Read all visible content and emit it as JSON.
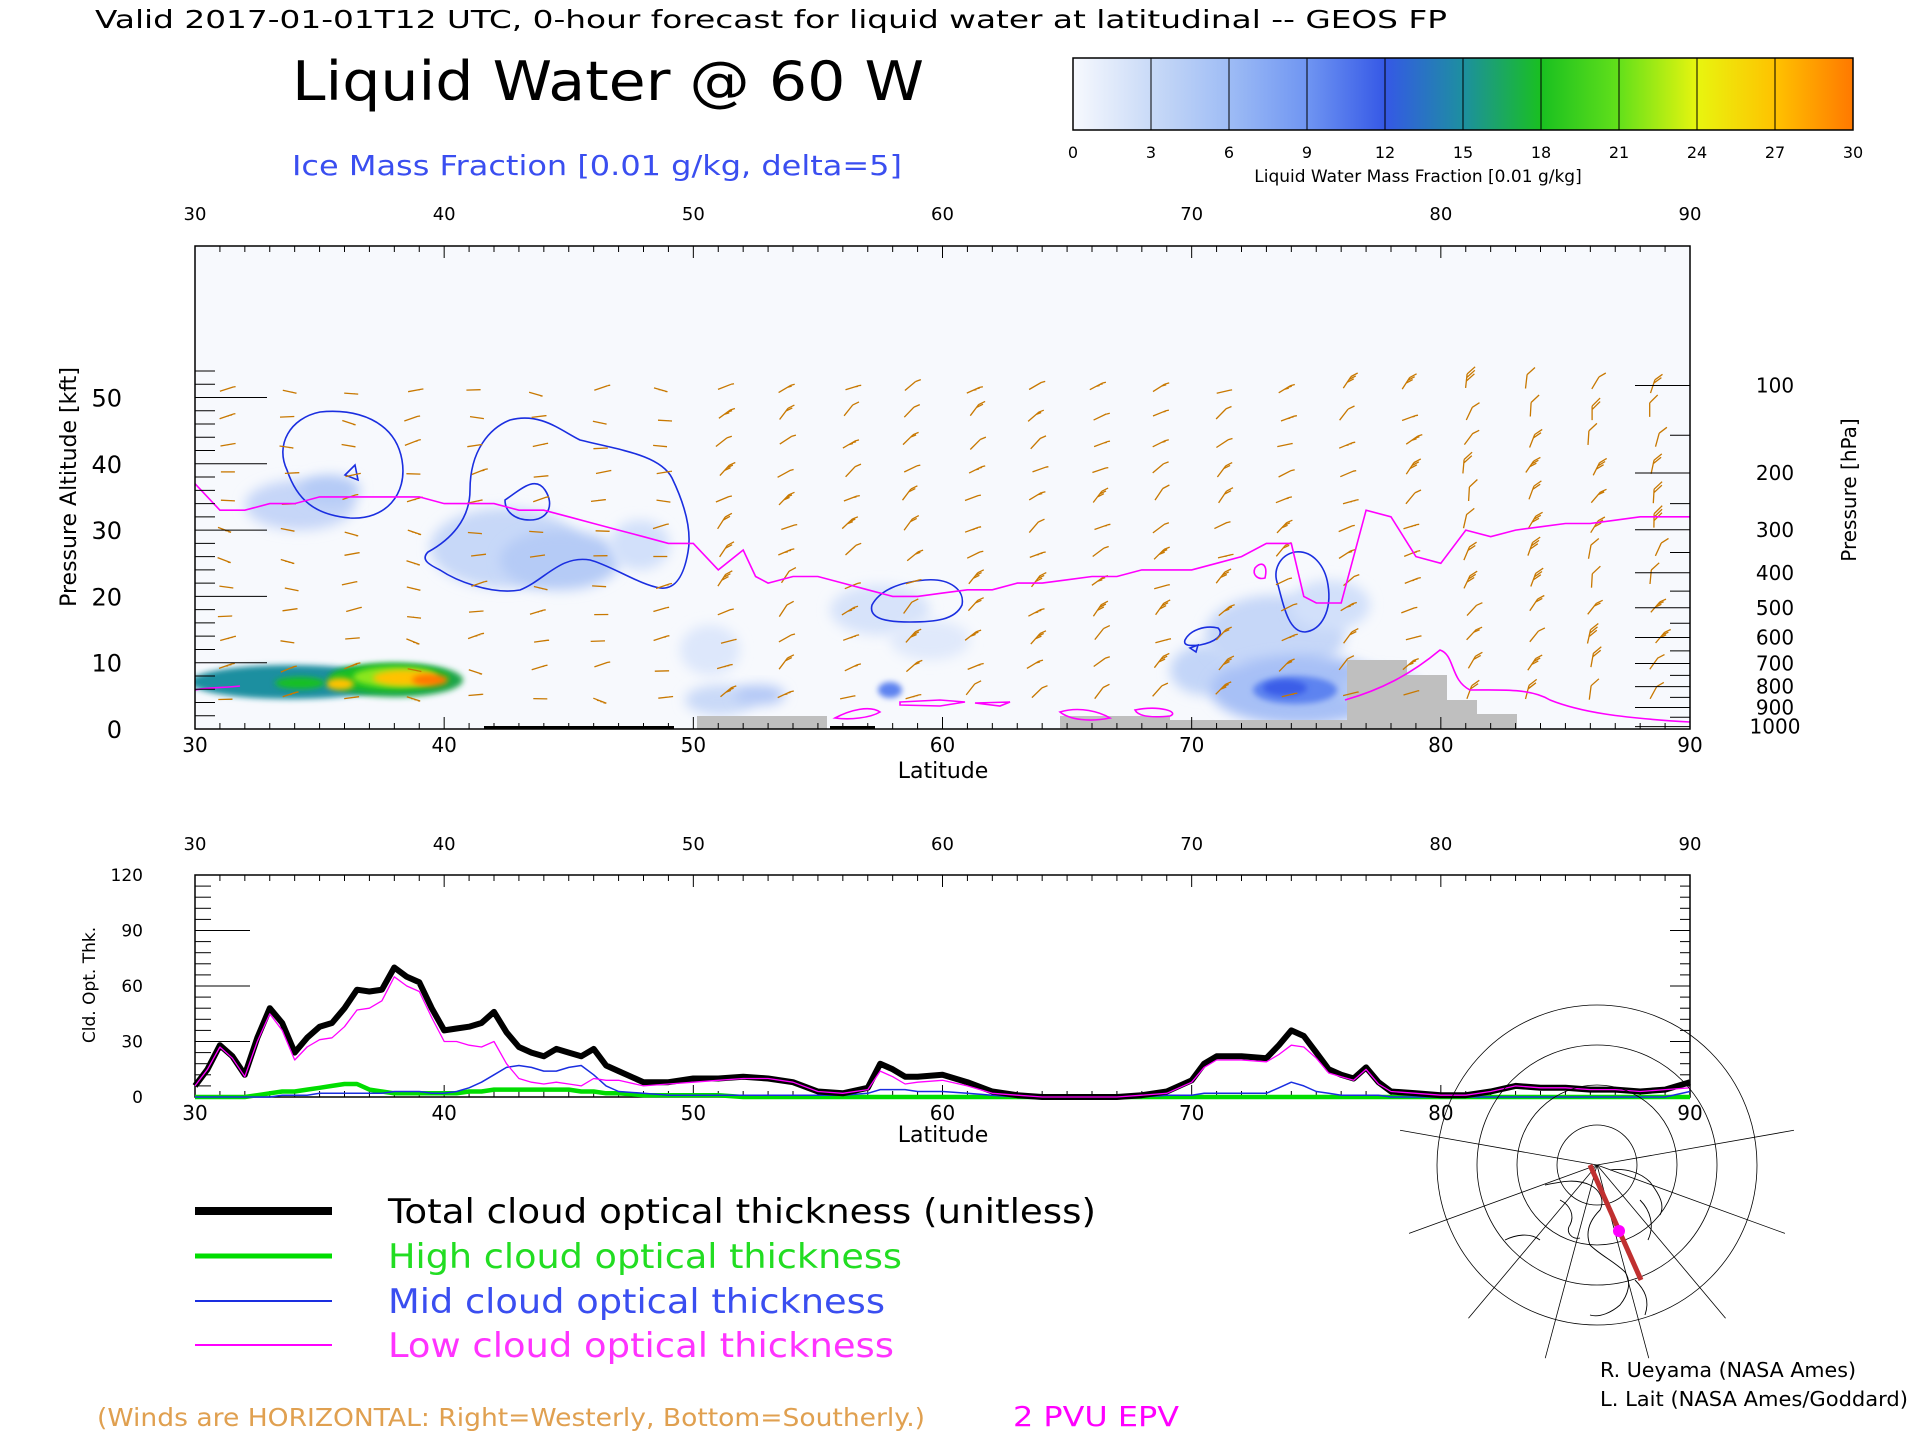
{
  "header": {
    "valid_line": "Valid 2017-01-01T12 UTC, 0-hour forecast for liquid water at latitudinal -- GEOS FP",
    "title": "Liquid Water @ 60 W",
    "subtitle": "Ice Mass Fraction [0.01 g/kg, delta=5]"
  },
  "colorbar": {
    "ticks": [
      "0",
      "3",
      "6",
      "9",
      "12",
      "15",
      "18",
      "21",
      "24",
      "27",
      "30"
    ],
    "label": "Liquid Water Mass Fraction [0.01 g/kg]",
    "colors": [
      "#f7f9fe",
      "#c9daf7",
      "#9ebcf5",
      "#6f95f2",
      "#3558e6",
      "#1d8fa0",
      "#19c020",
      "#63e01a",
      "#e8f50f",
      "#ffc200",
      "#ff7800"
    ]
  },
  "colors": {
    "ice_contour": "#1a2ee0",
    "epv_line": "#ff00ff",
    "wind_barb": "#c87800",
    "terrain": "#bfbfbf",
    "total_line": "#000000",
    "high_line": "#00dd00",
    "mid_line": "#1a2ee0",
    "low_line": "#ff00ff"
  },
  "upper_plot": {
    "lat_ticks": [
      "30",
      "40",
      "50",
      "60",
      "70",
      "80",
      "90"
    ],
    "xlabel": "Latitude",
    "left_ylabel": "Pressure Altitude [kft]",
    "left_ticks": [
      "0",
      "10",
      "20",
      "30",
      "40",
      "50"
    ],
    "right_ylabel": "Pressure [hPa]",
    "right_ticks": [
      "100",
      "200",
      "300",
      "400",
      "500",
      "600",
      "700",
      "800",
      "900",
      "1000"
    ]
  },
  "lower_plot": {
    "lat_ticks": [
      "30",
      "40",
      "50",
      "60",
      "70",
      "80",
      "90"
    ],
    "xlabel": "Latitude",
    "ylabel": "Cld. Opt. Thk.",
    "y_ticks": [
      "0",
      "30",
      "60",
      "90",
      "120"
    ]
  },
  "chart_data": [
    {
      "type": "heatmap",
      "title": "Liquid Water @ 60 W",
      "xlabel": "Latitude",
      "ylabel": "Pressure Altitude [kft]",
      "xlim": [
        30,
        90
      ],
      "ylim": [
        0,
        56
      ],
      "pressure_ticks_hPa": [
        100,
        200,
        300,
        400,
        500,
        600,
        700,
        800,
        900,
        1000
      ],
      "liquid_water_patches": [
        {
          "lat": 37,
          "alt_kft": 5.5,
          "max_value": 28
        },
        {
          "lat": 74,
          "alt_kft": 5,
          "max_value": 10
        },
        {
          "lat": 42,
          "alt_kft": 20,
          "max_value": 3
        },
        {
          "lat": 57.5,
          "alt_kft": 4,
          "max_value": 7
        }
      ],
      "epv_2pvu_kft": {
        "lat": [
          30,
          31,
          32,
          33,
          34,
          35,
          36,
          37,
          38,
          39,
          40,
          41,
          42,
          43,
          44,
          45,
          46,
          47,
          48,
          49,
          50,
          51,
          52,
          52.5,
          53,
          54,
          55,
          56,
          57,
          58,
          59,
          60,
          61,
          62,
          63,
          64,
          65,
          66,
          67,
          68,
          69,
          70,
          71,
          72,
          73,
          74,
          74.5,
          75,
          76,
          77,
          78,
          79,
          80,
          81,
          82,
          83,
          84,
          85,
          86,
          87,
          88,
          89,
          90
        ],
        "alt": [
          37,
          33,
          33,
          34,
          34,
          35,
          35,
          35,
          35,
          35,
          34,
          34,
          34,
          33,
          33,
          32,
          31,
          30,
          29,
          28,
          28,
          24,
          27,
          23,
          22,
          23,
          23,
          22,
          21,
          20,
          20,
          20.5,
          21,
          21,
          22,
          22,
          22.5,
          23,
          23,
          24,
          24,
          24,
          25,
          26,
          28,
          28,
          20,
          19,
          19,
          33,
          32,
          26,
          25,
          30,
          29,
          30,
          30.5,
          31,
          31,
          31.5,
          32,
          32,
          32
        ]
      },
      "ice_contours_delta": 5,
      "winds": "horizontal barbs: right=westerly, bottom=southerly"
    },
    {
      "type": "line",
      "xlabel": "Latitude",
      "ylabel": "Cld. Opt. Thk.",
      "xlim": [
        30,
        90
      ],
      "ylim": [
        0,
        120
      ],
      "x": [
        30,
        30.5,
        31,
        31.5,
        32,
        32.5,
        33,
        33.5,
        34,
        34.5,
        35,
        35.5,
        36,
        36.5,
        37,
        37.5,
        38,
        38.5,
        39,
        39.5,
        40,
        40.5,
        41,
        41.5,
        42,
        42.5,
        43,
        43.5,
        44,
        44.5,
        45,
        45.5,
        46,
        46.5,
        47,
        48,
        49,
        50,
        51,
        52,
        53,
        54,
        55,
        56,
        57,
        57.5,
        58,
        58.5,
        59,
        60,
        61,
        62,
        63,
        64,
        65,
        66,
        67,
        68,
        69,
        70,
        70.5,
        71,
        72,
        73,
        73.5,
        74,
        74.5,
        75,
        75.5,
        76,
        76.5,
        77,
        77.5,
        78,
        79,
        80,
        81,
        82,
        83,
        84,
        85,
        86,
        87,
        88,
        89,
        90
      ],
      "series": [
        {
          "name": "Total cloud optical thickness (unitless)",
          "values": [
            6,
            15,
            28,
            22,
            12,
            32,
            48,
            40,
            24,
            32,
            38,
            40,
            48,
            58,
            57,
            58,
            70,
            65,
            62,
            48,
            36,
            37,
            38,
            40,
            46,
            35,
            27,
            24,
            22,
            26,
            24,
            22,
            26,
            17,
            14,
            8,
            8,
            10,
            10,
            11,
            10,
            8,
            3,
            2,
            5,
            18,
            15,
            11,
            11,
            12,
            8,
            3,
            1,
            0,
            0,
            0,
            0,
            1,
            3,
            9,
            18,
            22,
            22,
            21,
            28,
            36,
            33,
            24,
            15,
            12,
            10,
            16,
            8,
            3,
            2,
            1,
            1,
            3,
            6,
            5,
            5,
            4,
            4,
            3,
            4,
            8
          ]
        },
        {
          "name": "High cloud optical thickness",
          "values": [
            0,
            0,
            0,
            0,
            0,
            1,
            2,
            3,
            3,
            4,
            5,
            6,
            7,
            7,
            4,
            3,
            2,
            2,
            2,
            2,
            2,
            2,
            3,
            3,
            4,
            4,
            4,
            4,
            4,
            4,
            4,
            3,
            3,
            2,
            2,
            1,
            1,
            1,
            1,
            0,
            0,
            0,
            0,
            0,
            0,
            0,
            0,
            0,
            0,
            0,
            0,
            0,
            0,
            0,
            0,
            0,
            0,
            0,
            0,
            0,
            0,
            0,
            0,
            0,
            0,
            0,
            0,
            0,
            0,
            0,
            0,
            0,
            0,
            0,
            0,
            0,
            0,
            0,
            0,
            0,
            0,
            0,
            0,
            0,
            0,
            0
          ]
        },
        {
          "name": "Mid cloud optical thickness",
          "values": [
            0,
            0,
            0,
            0,
            0,
            0,
            0,
            1,
            1,
            1,
            2,
            2,
            2,
            2,
            2,
            2,
            3,
            3,
            3,
            2,
            2,
            3,
            5,
            8,
            12,
            16,
            17,
            16,
            14,
            14,
            16,
            17,
            12,
            6,
            3,
            2,
            1,
            1,
            1,
            1,
            1,
            1,
            1,
            1,
            2,
            4,
            4,
            4,
            3,
            3,
            2,
            1,
            0,
            0,
            0,
            0,
            0,
            0,
            1,
            1,
            2,
            2,
            2,
            2,
            5,
            8,
            6,
            3,
            2,
            1,
            1,
            1,
            1,
            0,
            0,
            0,
            0,
            0,
            0,
            0,
            0,
            0,
            0,
            0,
            0,
            3
          ]
        },
        {
          "name": "Low cloud optical thickness",
          "values": [
            6,
            15,
            27,
            21,
            11,
            30,
            45,
            36,
            20,
            27,
            31,
            32,
            38,
            47,
            48,
            52,
            65,
            60,
            57,
            43,
            30,
            30,
            28,
            27,
            30,
            18,
            10,
            8,
            7,
            8,
            7,
            6,
            10,
            9,
            9,
            6,
            7,
            8,
            9,
            10,
            10,
            8,
            3,
            2,
            4,
            14,
            11,
            7,
            8,
            9,
            6,
            2,
            1,
            0,
            0,
            0,
            0,
            1,
            2,
            8,
            16,
            20,
            20,
            19,
            23,
            28,
            27,
            21,
            13,
            11,
            9,
            15,
            7,
            3,
            2,
            1,
            1,
            3,
            6,
            5,
            5,
            4,
            4,
            3,
            4,
            5
          ]
        }
      ]
    }
  ],
  "legend": {
    "total": "Total cloud optical thickness (unitless)",
    "high": "High cloud optical thickness",
    "mid": "Mid cloud optical thickness",
    "low": "Low cloud optical thickness"
  },
  "footer": {
    "winds_note": "(Winds are HORIZONTAL: Right=Westerly, Bottom=Southerly.)",
    "epv_note": "2 PVU EPV",
    "credit1": "R. Ueyama (NASA Ames)",
    "credit2": "L. Lait (NASA Ames/Goddard)"
  }
}
